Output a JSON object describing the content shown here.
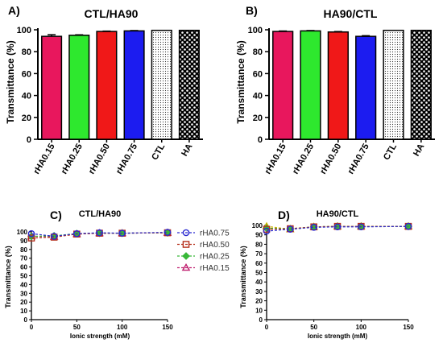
{
  "chart_data": [
    {
      "id": "A",
      "type": "bar",
      "panel_label": "A)",
      "title": "CTL/HA90",
      "ylabel": "Transmittance (%)",
      "xlabel": "",
      "ylim": [
        0,
        100
      ],
      "yticks": [
        0,
        20,
        40,
        60,
        80,
        100
      ],
      "categories": [
        "rHA0.15",
        "rHA0.25",
        "rHA0.50",
        "rHA0.75",
        "CTL",
        "HA"
      ],
      "values": [
        94,
        95,
        98.5,
        99,
        99.5,
        99.5
      ],
      "errors": [
        1.5,
        0.4,
        0.3,
        0.3,
        0,
        0
      ],
      "colors": [
        "#e8175d",
        "#2ee82e",
        "#f01818",
        "#1c1cf0",
        "#ffffff",
        "#000000"
      ],
      "fills": [
        "solid",
        "solid",
        "solid",
        "solid",
        "dots",
        "checker"
      ]
    },
    {
      "id": "B",
      "type": "bar",
      "panel_label": "B)",
      "title": "HA90/CTL",
      "ylabel": "Transmittance (%)",
      "xlabel": "",
      "ylim": [
        0,
        100
      ],
      "yticks": [
        0,
        20,
        40,
        60,
        80,
        100
      ],
      "categories": [
        "rHA0.15",
        "rHA0.25",
        "rHA0.50",
        "rHA0.75",
        "CTL",
        "HA"
      ],
      "values": [
        98.5,
        99,
        98,
        94,
        99.5,
        99.5
      ],
      "errors": [
        0.4,
        0.3,
        0.4,
        0.6,
        0,
        0
      ],
      "colors": [
        "#e8175d",
        "#2ee82e",
        "#f01818",
        "#1c1cf0",
        "#ffffff",
        "#000000"
      ],
      "fills": [
        "solid",
        "solid",
        "solid",
        "solid",
        "dots",
        "checker"
      ]
    },
    {
      "id": "C",
      "type": "line",
      "panel_label": "C)",
      "title": "CTL/HA90",
      "ylabel": "Transmittance (%)",
      "xlabel": "Ionic strength (mM)",
      "xlim": [
        0,
        150
      ],
      "ylim": [
        0,
        100
      ],
      "xticks": [
        0,
        50,
        100,
        150
      ],
      "yticks": [
        0,
        10,
        20,
        30,
        40,
        50,
        60,
        70,
        80,
        90,
        100
      ],
      "x": [
        0,
        25,
        50,
        75,
        100,
        150
      ],
      "legend_position": "right",
      "series": [
        {
          "name": "rHA0.75",
          "color": "#2b2bd0",
          "marker": "circle",
          "values": [
            98,
            95,
            98,
            99,
            98.5,
            99.5
          ]
        },
        {
          "name": "rHA0.50",
          "color": "#b5301c",
          "marker": "square",
          "values": [
            93,
            94,
            97.5,
            98.5,
            98.5,
            99
          ]
        },
        {
          "name": "rHA0.25",
          "color": "#38b838",
          "marker": "diamond",
          "values": [
            95,
            95.5,
            98,
            98.5,
            98.5,
            99
          ]
        },
        {
          "name": "rHA0.15",
          "color": "#c02070",
          "marker": "triangle",
          "values": [
            95,
            94.5,
            97.5,
            98.5,
            98.5,
            99
          ]
        }
      ]
    },
    {
      "id": "D",
      "type": "line",
      "panel_label": "D)",
      "title": "HA90/CTL",
      "ylabel": "Transmittance (%)",
      "xlabel": "Ionic strength (mM)",
      "xlim": [
        0,
        150
      ],
      "ylim": [
        0,
        100
      ],
      "xticks": [
        0,
        50,
        100,
        150
      ],
      "yticks": [
        0,
        10,
        20,
        30,
        40,
        50,
        60,
        70,
        80,
        90,
        100
      ],
      "x": [
        0,
        25,
        50,
        75,
        100,
        150
      ],
      "series": [
        {
          "name": "rHA0.75",
          "color": "#2b2bd0",
          "marker": "circle",
          "values": [
            94,
            96,
            98,
            98.5,
            98.5,
            99
          ]
        },
        {
          "name": "rHA0.50",
          "color": "#b5301c",
          "marker": "square",
          "values": [
            96,
            96.5,
            98.5,
            99,
            99,
            99
          ]
        },
        {
          "name": "rHA0.25",
          "color": "#38b838",
          "marker": "diamond",
          "values": [
            97,
            96.5,
            98.5,
            99,
            99,
            99
          ]
        },
        {
          "name": "rHA0.15",
          "color": "#c8b400",
          "marker": "triangle",
          "values": [
            99,
            96,
            98.5,
            99,
            99,
            99
          ]
        }
      ]
    }
  ]
}
